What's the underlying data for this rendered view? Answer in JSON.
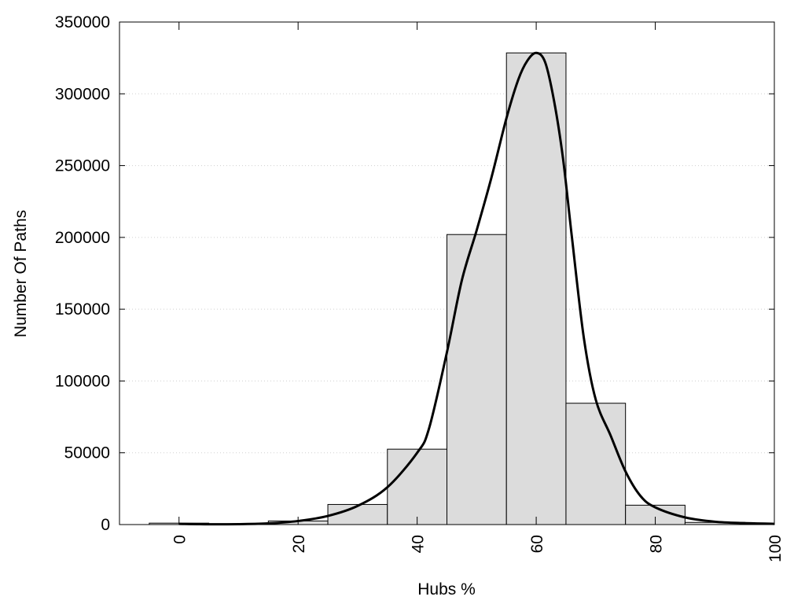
{
  "chart_data": {
    "type": "bar",
    "title": "",
    "xlabel": "Hubs %",
    "ylabel": "Number Of Paths",
    "xlim": [
      -10,
      100
    ],
    "ylim": [
      0,
      350000
    ],
    "grid": {
      "y": true,
      "x": false,
      "style": "dotted"
    },
    "x_ticks": [
      0,
      20,
      40,
      60,
      80,
      100
    ],
    "y_ticks": [
      0,
      50000,
      100000,
      150000,
      200000,
      250000,
      300000,
      350000
    ],
    "bin_width": 10,
    "bins": [
      {
        "center": 0,
        "value": 1000
      },
      {
        "center": 10,
        "value": 500
      },
      {
        "center": 20,
        "value": 2500
      },
      {
        "center": 30,
        "value": 14000
      },
      {
        "center": 40,
        "value": 52500
      },
      {
        "center": 50,
        "value": 202000
      },
      {
        "center": 60,
        "value": 328500
      },
      {
        "center": 70,
        "value": 84500
      },
      {
        "center": 80,
        "value": 13500
      },
      {
        "center": 90,
        "value": 1500
      },
      {
        "center": 100,
        "value": 300
      }
    ],
    "density_curve": {
      "x": [
        0,
        5,
        10,
        15,
        20,
        25,
        30,
        35,
        40,
        42,
        45,
        47.5,
        50,
        52.5,
        55,
        57,
        58.5,
        60,
        61.5,
        63,
        64.5,
        66,
        68,
        70,
        72.5,
        75,
        77.5,
        80,
        85,
        90,
        95,
        100
      ],
      "y": [
        500,
        200,
        300,
        800,
        2500,
        6000,
        13000,
        26000,
        50000,
        67000,
        120000,
        170000,
        205000,
        242000,
        283000,
        310000,
        323000,
        328500,
        322000,
        295000,
        255000,
        200000,
        130000,
        87000,
        62000,
        37000,
        20000,
        12000,
        5000,
        2000,
        1000,
        500
      ]
    }
  }
}
